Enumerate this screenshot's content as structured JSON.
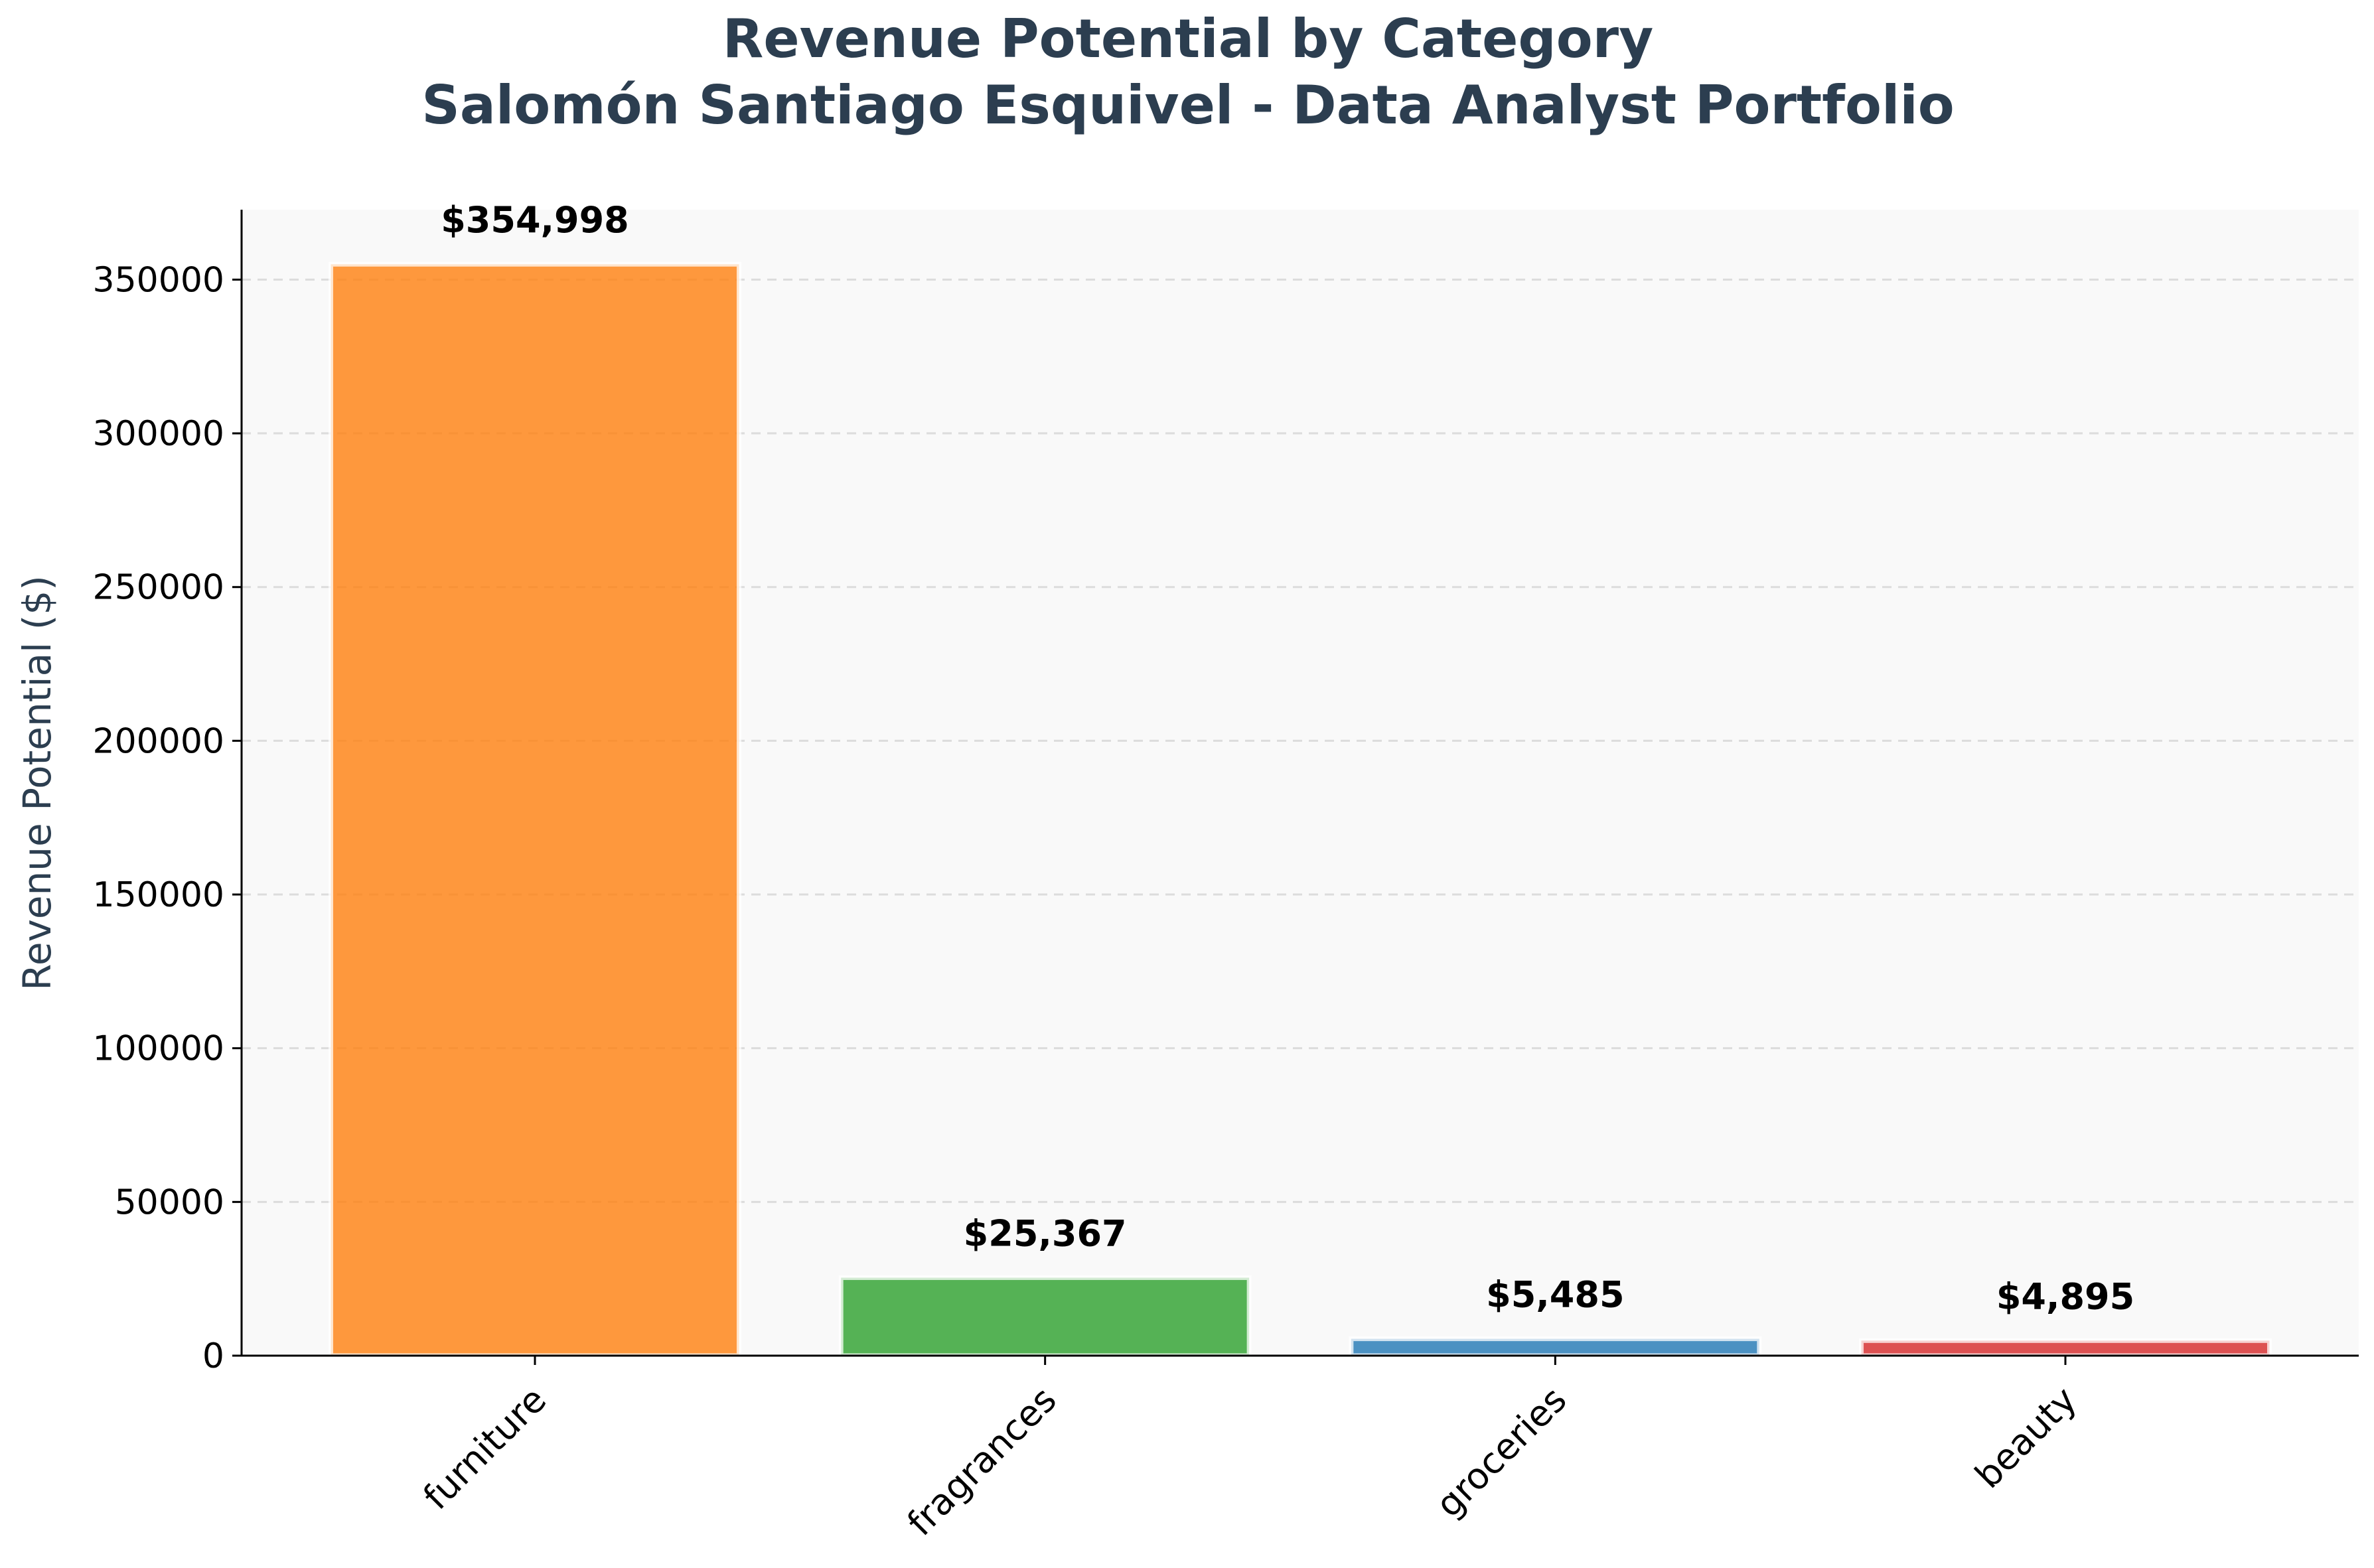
{
  "chart_data": {
    "type": "bar",
    "title": "Revenue Potential by Category",
    "subtitle": "Salomón Santiago Esquivel - Data Analyst Portfolio",
    "xlabel": "",
    "ylabel": "Revenue Potential ($)",
    "ylim": [
      0,
      372750
    ],
    "yticks": [
      0,
      50000,
      100000,
      150000,
      200000,
      250000,
      300000,
      350000
    ],
    "grid": "y-dashed",
    "categories": [
      "furniture",
      "fragrances",
      "groceries",
      "beauty"
    ],
    "values": [
      354998,
      25367,
      5485,
      4895
    ],
    "data_labels": [
      "$354,998",
      "$25,367",
      "$5,485",
      "$4,895"
    ],
    "colors": [
      "#ff7f0e",
      "#2ca02c",
      "#1f77b4",
      "#d62728"
    ],
    "plot_background": "#f9f9f9",
    "title_color": "#2c3e50"
  }
}
